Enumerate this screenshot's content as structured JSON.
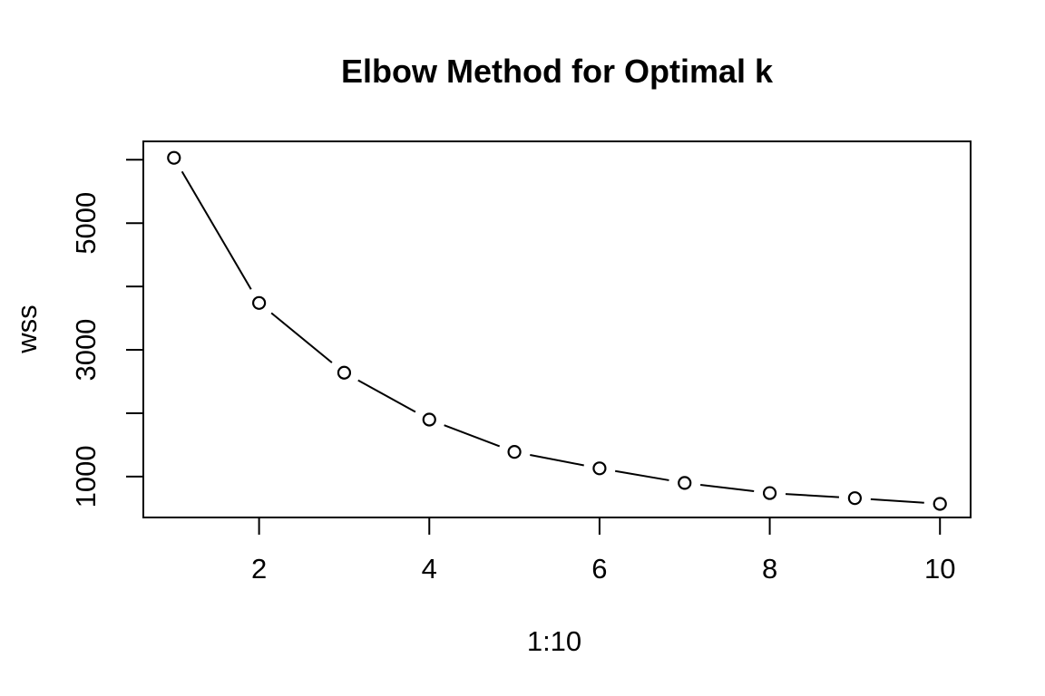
{
  "page": {
    "background_color": "#ffffff",
    "foreground_color": "#000000"
  },
  "chart_data": {
    "type": "line",
    "title": "Elbow Method for Optimal k",
    "xlabel": "1:10",
    "ylabel": "wss",
    "x": [
      1,
      2,
      3,
      4,
      5,
      6,
      7,
      8,
      9,
      10
    ],
    "series": [
      {
        "name": "wss",
        "values": [
          6030,
          3740,
          2640,
          1900,
          1390,
          1130,
          900,
          740,
          660,
          570
        ]
      }
    ],
    "marker": "open-circle",
    "line_type": "both-points-and-segments",
    "x_ticks": [
      2,
      4,
      6,
      8,
      10
    ],
    "y_ticks": [
      1000,
      2000,
      3000,
      4000,
      5000,
      6000
    ],
    "y_tick_labels": [
      "1000",
      "3000",
      "5000"
    ],
    "xlim": [
      0.64,
      10.36
    ],
    "ylim": [
      355,
      6290
    ],
    "grid": false,
    "legend": null,
    "plot_color": "#000000"
  }
}
